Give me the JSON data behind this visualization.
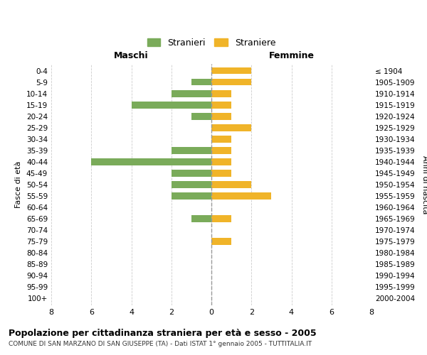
{
  "age_groups": [
    "0-4",
    "5-9",
    "10-14",
    "15-19",
    "20-24",
    "25-29",
    "30-34",
    "35-39",
    "40-44",
    "45-49",
    "50-54",
    "55-59",
    "60-64",
    "65-69",
    "70-74",
    "75-79",
    "80-84",
    "85-89",
    "90-94",
    "95-99",
    "100+"
  ],
  "birth_years": [
    "2000-2004",
    "1995-1999",
    "1990-1994",
    "1985-1989",
    "1980-1984",
    "1975-1979",
    "1970-1974",
    "1965-1969",
    "1960-1964",
    "1955-1959",
    "1950-1954",
    "1945-1949",
    "1940-1944",
    "1935-1939",
    "1930-1934",
    "1925-1929",
    "1920-1924",
    "1915-1919",
    "1910-1914",
    "1905-1909",
    "≤ 1904"
  ],
  "maschi": [
    0,
    1,
    2,
    4,
    1,
    0,
    0,
    2,
    6,
    2,
    2,
    2,
    0,
    1,
    0,
    0,
    0,
    0,
    0,
    0,
    0
  ],
  "femmine": [
    2,
    2,
    1,
    1,
    1,
    2,
    1,
    1,
    1,
    1,
    2,
    3,
    0,
    1,
    0,
    1,
    0,
    0,
    0,
    0,
    0
  ],
  "color_maschi": "#7aab5a",
  "color_femmine": "#f0b429",
  "title": "Popolazione per cittadinanza straniera per età e sesso - 2005",
  "subtitle": "COMUNE DI SAN MARZANO DI SAN GIUSEPPE (TA) - Dati ISTAT 1° gennaio 2005 - TUTTITALIA.IT",
  "xlabel_left": "Maschi",
  "xlabel_right": "Femmine",
  "ylabel_left": "Fasce di età",
  "ylabel_right": "Anni di nascita",
  "legend_maschi": "Stranieri",
  "legend_femmine": "Straniere",
  "xlim": 8,
  "background_color": "#ffffff",
  "grid_color": "#cccccc"
}
